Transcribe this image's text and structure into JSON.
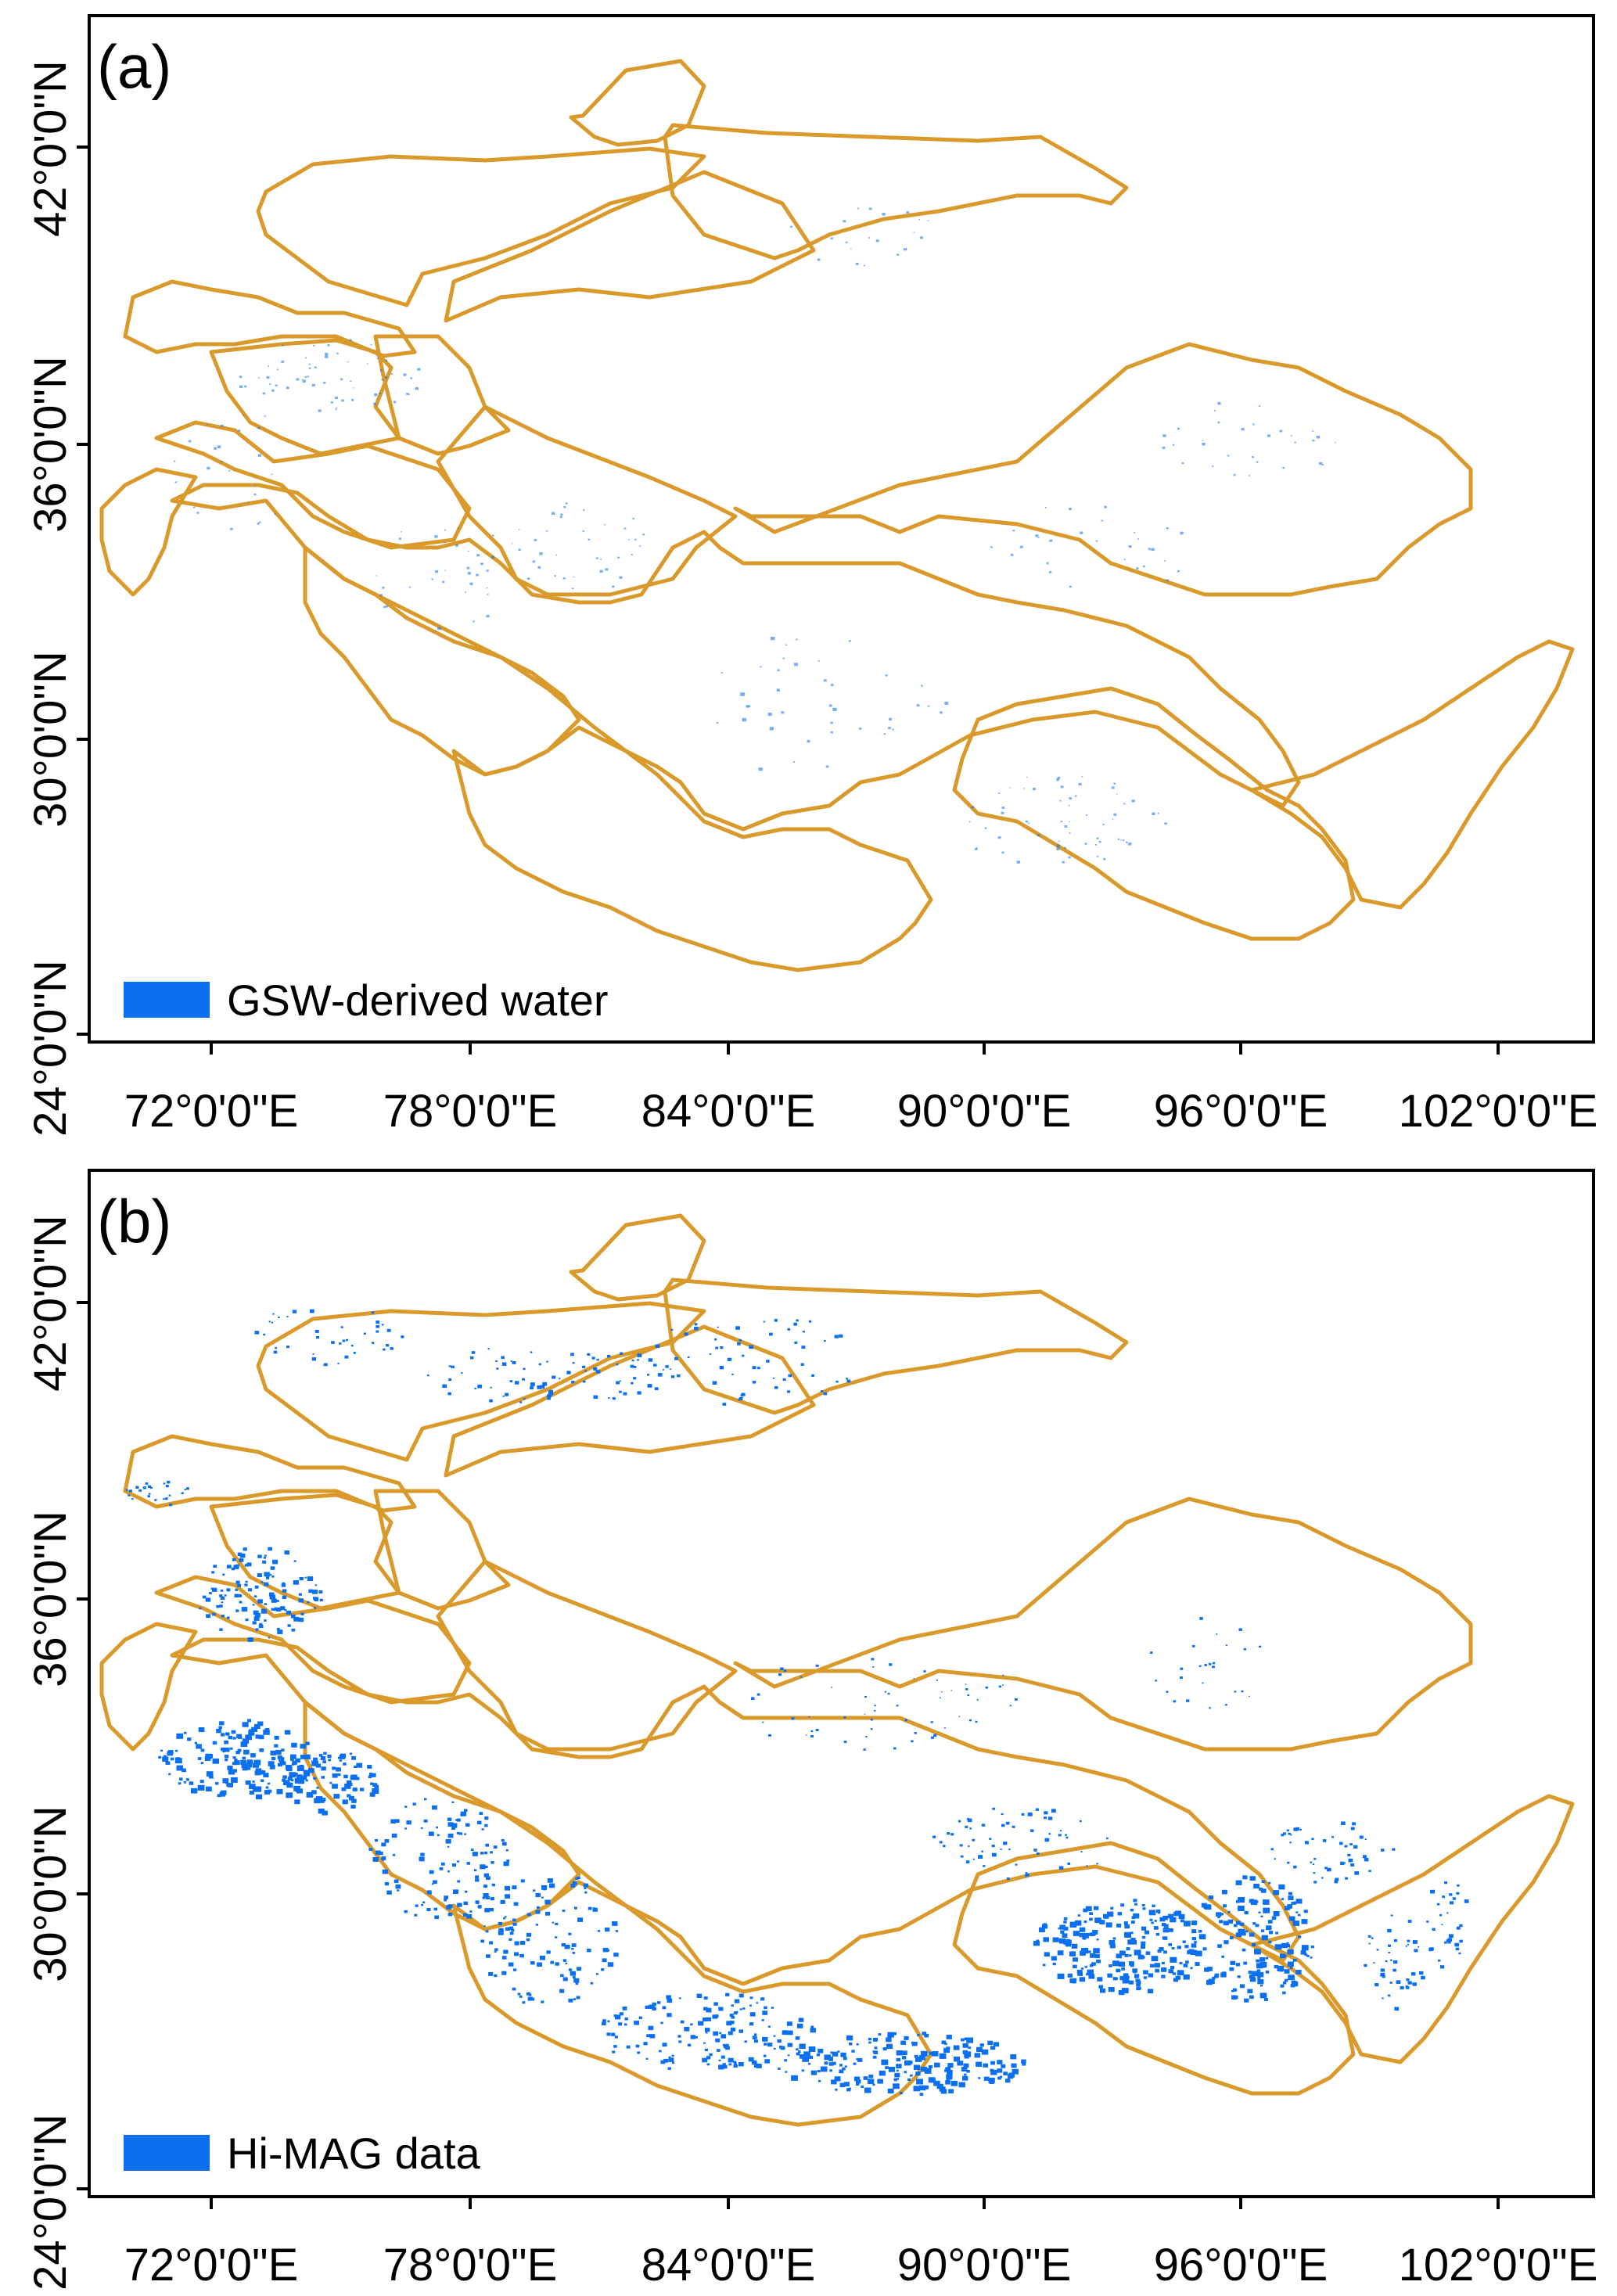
{
  "panels": [
    {
      "label": "(a)",
      "legend": "GSW-derived water",
      "y_ticks": [
        "24°0'0\"N",
        "30°0'0\"N",
        "36°0'0\"N",
        "42°0'0\"N"
      ],
      "x_ticks": [
        "72°0'0\"E",
        "78°0'0\"E",
        "84°0'0\"E",
        "90°0'0\"E",
        "96°0'0\"E",
        "102°0'0\"E"
      ]
    },
    {
      "label": "(b)",
      "legend": "Hi-MAG data",
      "y_ticks": [
        "24°0'0\"N",
        "30°0'0\"N",
        "36°0'0\"N",
        "42°0'0\"N"
      ],
      "x_ticks": [
        "72°0'0\"E",
        "78°0'0\"E",
        "84°0'0\"E",
        "90°0'0\"E",
        "96°0'0\"E",
        "102°0'0\"E"
      ]
    }
  ],
  "colors": {
    "basin_outline": "#d99a2b",
    "water": "#0a6ff0"
  }
}
